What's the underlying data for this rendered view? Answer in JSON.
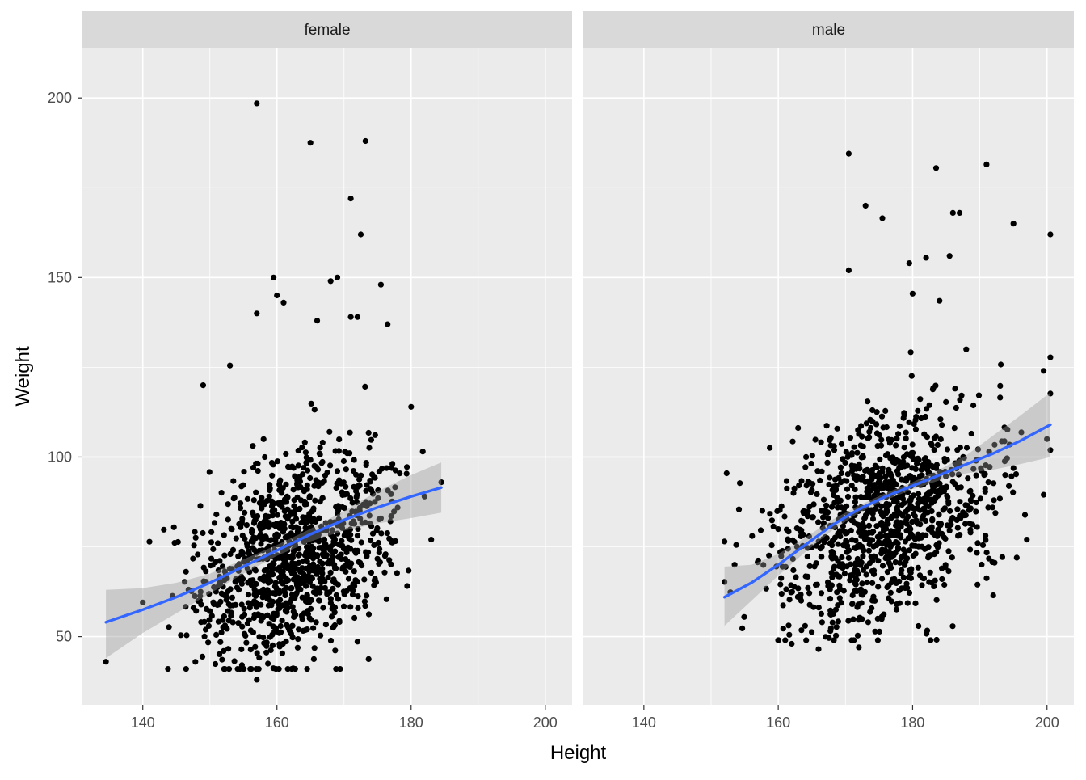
{
  "chart_data": {
    "type": "scatter",
    "xlabel": "Height",
    "ylabel": "Weight",
    "xlim": [
      131,
      204
    ],
    "ylim": [
      31,
      214
    ],
    "x_ticks": [
      140,
      160,
      180,
      200
    ],
    "y_ticks": [
      50,
      100,
      150,
      200
    ],
    "grid": true,
    "legend": "none",
    "colors": {
      "panel_bg": "#ebebeb",
      "strip_bg": "#d9d9d9",
      "grid": "#ffffff",
      "point": "#000000",
      "smooth_line": "#3366ff",
      "ribbon": "#999999"
    },
    "panels": [
      {
        "label": "female",
        "point_summary": {
          "n": 1100,
          "x_mean": 162.5,
          "x_sd": 7.2,
          "y_mean": 72,
          "y_sd": 16,
          "x_range": [
            134.5,
            184.5
          ],
          "y_range": [
            38,
            199
          ]
        },
        "outliers": [
          {
            "x": 157,
            "y": 198.5
          },
          {
            "x": 165,
            "y": 187.5
          },
          {
            "x": 173.2,
            "y": 188
          },
          {
            "x": 171,
            "y": 172
          },
          {
            "x": 172.5,
            "y": 162
          },
          {
            "x": 159.5,
            "y": 150
          },
          {
            "x": 168,
            "y": 149
          },
          {
            "x": 169,
            "y": 150
          },
          {
            "x": 175.5,
            "y": 148
          },
          {
            "x": 157,
            "y": 140
          },
          {
            "x": 160,
            "y": 145
          },
          {
            "x": 161,
            "y": 143
          },
          {
            "x": 171,
            "y": 139
          },
          {
            "x": 172,
            "y": 139
          },
          {
            "x": 176.5,
            "y": 137
          },
          {
            "x": 166,
            "y": 138
          },
          {
            "x": 134.5,
            "y": 43
          },
          {
            "x": 140,
            "y": 59.5
          },
          {
            "x": 184.5,
            "y": 93
          },
          {
            "x": 182,
            "y": 89
          },
          {
            "x": 183,
            "y": 77
          },
          {
            "x": 180,
            "y": 114
          },
          {
            "x": 149,
            "y": 120
          },
          {
            "x": 153,
            "y": 125.5
          },
          {
            "x": 157,
            "y": 38
          }
        ],
        "smooth": {
          "x": [
            134.5,
            140,
            145,
            150,
            155,
            160,
            165,
            170,
            175,
            180,
            184.5
          ],
          "y": [
            54,
            57.5,
            61,
            65,
            69.5,
            74,
            78.5,
            82.5,
            86,
            89,
            91.5
          ],
          "ci_lower": [
            44,
            51,
            56.5,
            62,
            67.5,
            72.5,
            76.5,
            79.5,
            81.5,
            83,
            84.5
          ],
          "ci_upper": [
            63,
            63.5,
            65,
            67.5,
            71.5,
            75.5,
            80,
            85,
            90.5,
            95,
            98.5
          ]
        }
      },
      {
        "label": "male",
        "point_summary": {
          "n": 1100,
          "x_mean": 176,
          "x_sd": 8,
          "y_mean": 83,
          "y_sd": 16,
          "x_range": [
            152,
            200.5
          ],
          "y_range": [
            46,
            185
          ]
        },
        "outliers": [
          {
            "x": 170.5,
            "y": 184.5
          },
          {
            "x": 183.5,
            "y": 180.5
          },
          {
            "x": 191,
            "y": 181.5
          },
          {
            "x": 173,
            "y": 170
          },
          {
            "x": 175.5,
            "y": 166.5
          },
          {
            "x": 186,
            "y": 168
          },
          {
            "x": 187,
            "y": 168
          },
          {
            "x": 195,
            "y": 165
          },
          {
            "x": 200.5,
            "y": 162
          },
          {
            "x": 170.5,
            "y": 152
          },
          {
            "x": 179.5,
            "y": 154
          },
          {
            "x": 182,
            "y": 155.5
          },
          {
            "x": 185.5,
            "y": 156
          },
          {
            "x": 180,
            "y": 145.5
          },
          {
            "x": 184,
            "y": 143.5
          },
          {
            "x": 199.5,
            "y": 124
          },
          {
            "x": 200,
            "y": 105
          },
          {
            "x": 199.5,
            "y": 89.5
          },
          {
            "x": 195.5,
            "y": 72
          },
          {
            "x": 197,
            "y": 77
          },
          {
            "x": 192,
            "y": 61.5
          },
          {
            "x": 152,
            "y": 76.5
          },
          {
            "x": 153.5,
            "y": 70
          },
          {
            "x": 162,
            "y": 48
          },
          {
            "x": 166,
            "y": 46.5
          },
          {
            "x": 172,
            "y": 47
          }
        ],
        "smooth": {
          "x": [
            152,
            156,
            160,
            164,
            168,
            172,
            176,
            180,
            184,
            188,
            192,
            196,
            200.5
          ],
          "y": [
            61,
            65,
            70,
            75.5,
            81,
            85.5,
            89,
            92,
            95,
            98,
            101,
            104.5,
            109
          ],
          "ci_lower": [
            53,
            60,
            67,
            73.5,
            79.5,
            84.5,
            88,
            91,
            93.5,
            95.5,
            96.5,
            98,
            100
          ],
          "ci_upper": [
            69.5,
            70,
            73,
            77.5,
            82.5,
            86.5,
            90,
            93,
            96.5,
            100.5,
            106,
            111.5,
            118
          ]
        }
      }
    ]
  }
}
